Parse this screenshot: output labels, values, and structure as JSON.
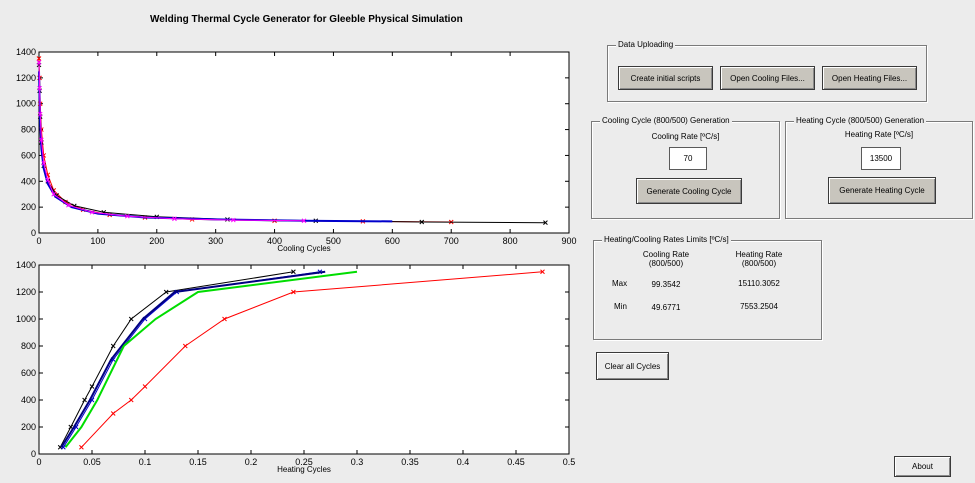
{
  "app_title": "Welding Thermal Cycle Generator for Gleeble Physical Simulation",
  "chart_data": [
    {
      "type": "line",
      "title": "",
      "xlabel": "Cooling Cycles",
      "ylabel": "",
      "xlim": [
        0,
        900
      ],
      "ylim": [
        0,
        1400
      ],
      "xticks": [
        0,
        100,
        200,
        300,
        400,
        500,
        600,
        700,
        800,
        900
      ],
      "yticks": [
        0,
        200,
        400,
        600,
        800,
        1000,
        1200,
        1400
      ],
      "grid": false,
      "series": [
        {
          "color": "#ff0000",
          "marker": "x",
          "x": [
            0,
            1,
            2,
            4,
            8,
            15,
            25,
            45,
            75,
            120,
            180,
            260,
            400,
            550,
            700
          ],
          "y": [
            1350,
            1200,
            1000,
            800,
            600,
            450,
            330,
            240,
            180,
            140,
            120,
            105,
            95,
            90,
            85
          ]
        },
        {
          "color": "#000000",
          "marker": "x",
          "x": [
            0,
            1,
            2,
            4,
            8,
            15,
            30,
            60,
            110,
            200,
            320,
            470,
            650,
            860
          ],
          "y": [
            1300,
            1100,
            900,
            700,
            520,
            400,
            290,
            210,
            160,
            125,
            105,
            95,
            85,
            80
          ]
        },
        {
          "color": "#0000cc",
          "marker": "none",
          "x": [
            0,
            1,
            2,
            4,
            8,
            15,
            28,
            55,
            100,
            180,
            300,
            450,
            600
          ],
          "y": [
            1250,
            1050,
            850,
            650,
            500,
            380,
            280,
            200,
            150,
            120,
            105,
            95,
            90
          ]
        },
        {
          "color": "#ff00ff",
          "marker": "x",
          "x": [
            0,
            1,
            2,
            4,
            8,
            15,
            25,
            50,
            90,
            150,
            230,
            330,
            450
          ],
          "y": [
            1320,
            1120,
            920,
            720,
            540,
            410,
            300,
            215,
            160,
            130,
            110,
            100,
            95
          ]
        }
      ]
    },
    {
      "type": "line",
      "title": "",
      "xlabel": "Heating Cycles",
      "ylabel": "",
      "xlim": [
        0,
        0.5
      ],
      "ylim": [
        0,
        1400
      ],
      "xticks": [
        "0",
        "0.05",
        "0.1",
        "0.15",
        "0.2",
        "0.25",
        "0.3",
        "0.35",
        "0.4",
        "0.45",
        "0.5"
      ],
      "yticks": [
        0,
        200,
        400,
        600,
        800,
        1000,
        1200,
        1400
      ],
      "grid": false,
      "series": [
        {
          "color": "#000000",
          "marker": "x",
          "x": [
            0.02,
            0.03,
            0.043,
            0.05,
            0.07,
            0.087,
            0.12,
            0.24
          ],
          "y": [
            50,
            200,
            400,
            500,
            800,
            1000,
            1200,
            1350
          ]
        },
        {
          "color": "#0000cc",
          "marker": "x",
          "x": [
            0.023,
            0.035,
            0.05,
            0.07,
            0.1,
            0.13,
            0.265
          ],
          "y": [
            50,
            200,
            400,
            700,
            1000,
            1200,
            1350
          ]
        },
        {
          "color": "#000080",
          "marker": "none",
          "x": [
            0.021,
            0.033,
            0.048,
            0.068,
            0.098,
            0.128,
            0.27
          ],
          "y": [
            50,
            200,
            400,
            700,
            1000,
            1200,
            1350
          ]
        },
        {
          "color": "#00dd00",
          "marker": "none",
          "x": [
            0.025,
            0.04,
            0.055,
            0.08,
            0.11,
            0.15,
            0.3
          ],
          "y": [
            50,
            200,
            400,
            800,
            1000,
            1200,
            1350
          ]
        },
        {
          "color": "#ff0000",
          "marker": "x",
          "x": [
            0.04,
            0.07,
            0.087,
            0.1,
            0.138,
            0.175,
            0.24,
            0.475
          ],
          "y": [
            50,
            300,
            400,
            500,
            800,
            1000,
            1200,
            1350
          ]
        }
      ]
    }
  ],
  "data_uploading": {
    "title": "Data Uploading",
    "create_scripts_label": "Create initial scripts",
    "open_cooling_label": "Open Cooling Files...",
    "open_heating_label": "Open Heating Files..."
  },
  "cooling_panel": {
    "title": "Cooling Cycle (800/500) Generation",
    "rate_label": "Cooling Rate  [ºC/s]",
    "rate_value": "70",
    "generate_label": "Generate Cooling Cycle"
  },
  "heating_panel": {
    "title": "Heating Cycle (800/500) Generation",
    "rate_label": "Heating Rate  [ºC/s]",
    "rate_value": "13500",
    "generate_label": "Generate Heating Cycle"
  },
  "limits_panel": {
    "title": "Heating/Cooling Rates Limits [ºC/s]",
    "cooling_header_1": "Cooling Rate",
    "cooling_header_2": "(800/500)",
    "heating_header_1": "Heating Rate",
    "heating_header_2": "(800/500)",
    "max_label": "Max",
    "min_label": "Min",
    "cooling_max": "99.3542",
    "cooling_min": "49.6771",
    "heating_max": "15110.3052",
    "heating_min": "7553.2504"
  },
  "clear_label": "Clear all Cycles",
  "about_label": "About"
}
